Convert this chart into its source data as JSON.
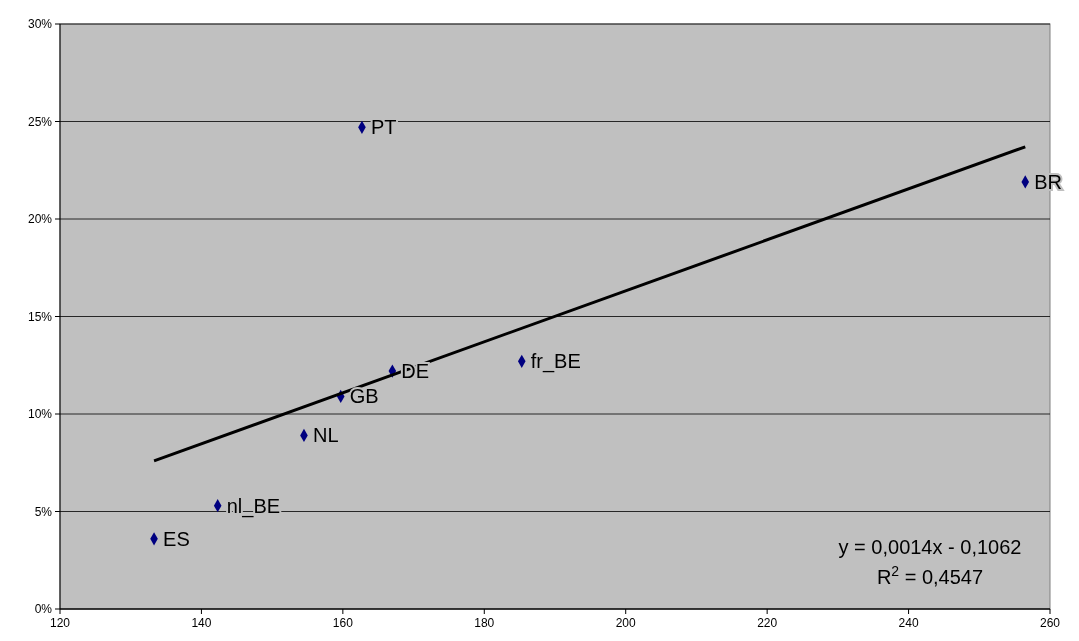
{
  "chart_data": {
    "type": "scatter",
    "grid": "y",
    "xlim": [
      120,
      260
    ],
    "xticks": [
      120,
      140,
      160,
      180,
      200,
      220,
      240,
      260
    ],
    "ylim": [
      0,
      0.3
    ],
    "yticks": [
      {
        "value": 0,
        "label": "0%"
      },
      {
        "value": 0.05,
        "label": "5%"
      },
      {
        "value": 0.1,
        "label": "10%"
      },
      {
        "value": 0.15,
        "label": "15%"
      },
      {
        "value": 0.2,
        "label": "20%"
      },
      {
        "value": 0.25,
        "label": "25%"
      },
      {
        "value": 0.3,
        "label": "30%"
      }
    ],
    "series": [
      {
        "marker": "diamond",
        "color": "#000080",
        "x": [
          133.3,
          142.3,
          154.5,
          159.7,
          167,
          185.3,
          162.7,
          256.5
        ],
        "values": [
          0.036,
          0.053,
          0.089,
          0.109,
          0.122,
          0.127,
          0.247,
          0.219
        ]
      },
      {
        "type": "line",
        "color": "#000000",
        "x": [
          133.3,
          256.5
        ],
        "values": [
          0.076,
          0.237
        ]
      }
    ],
    "annotations": [
      {
        "text": "ES",
        "x": 133.3,
        "y": 0.036
      },
      {
        "text": "nl_BE",
        "x": 142.3,
        "y": 0.053
      },
      {
        "text": "NL",
        "x": 154.5,
        "y": 0.089
      },
      {
        "text": "GB",
        "x": 159.7,
        "y": 0.109
      },
      {
        "text": "DE",
        "x": 167,
        "y": 0.122
      },
      {
        "text": "fr_BE",
        "x": 185.3,
        "y": 0.127
      },
      {
        "text": "PT",
        "x": 162.7,
        "y": 0.247
      },
      {
        "text": "BR",
        "x": 256.5,
        "y": 0.219
      },
      "y = 0,0014x - 0,1062",
      "R$^{2}$ = 0,4547"
    ]
  }
}
